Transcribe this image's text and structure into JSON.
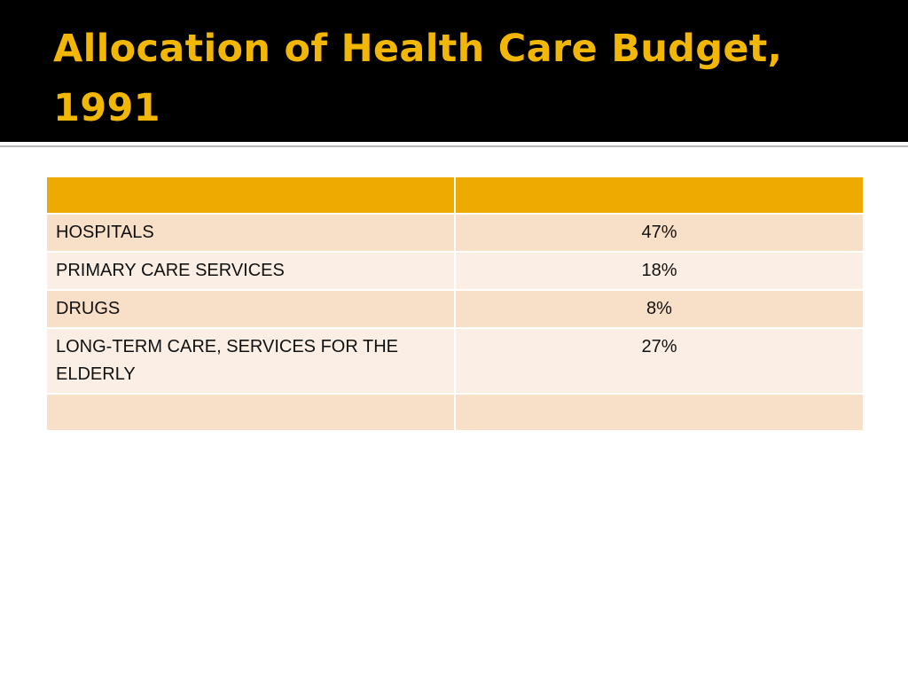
{
  "slide": {
    "title": "Allocation of Health Care Budget, 1991",
    "colors": {
      "title_background": "#000000",
      "title_text": "#f2b705",
      "header_row": "#eeaa00",
      "row_odd": "#f8dfc8",
      "row_even": "#faeee5"
    }
  },
  "table": {
    "header": [
      "",
      ""
    ],
    "rows": [
      {
        "category": "HOSPITALS",
        "value": "47%"
      },
      {
        "category": "PRIMARY CARE SERVICES",
        "value": "18%"
      },
      {
        "category": "DRUGS",
        "value": "8%"
      },
      {
        "category": "LONG-TERM CARE, SERVICES FOR THE ELDERLY",
        "value": "27%"
      },
      {
        "category": "",
        "value": ""
      }
    ]
  }
}
